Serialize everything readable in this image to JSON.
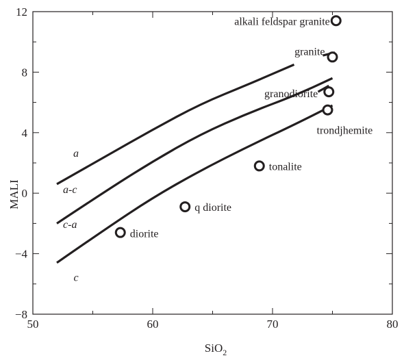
{
  "chart_data": {
    "type": "scatter",
    "xlabel": "SiO",
    "xlabel_subscript": "2",
    "ylabel": "MALI",
    "xlim": [
      50,
      80
    ],
    "ylim": [
      -8,
      12
    ],
    "xticks": [
      50,
      60,
      70,
      80
    ],
    "xtick_labels": [
      "50",
      "60",
      "70",
      "80"
    ],
    "yticks": [
      -8,
      -4,
      0,
      4,
      8,
      12
    ],
    "ytick_labels": [
      "−8",
      "−4",
      "0",
      "4",
      "8",
      "12"
    ],
    "grid": false,
    "points": [
      {
        "label": "alkali feldspar granite",
        "x": 75.3,
        "y": 11.4
      },
      {
        "label": "granite",
        "x": 75.0,
        "y": 9.0
      },
      {
        "label": "granodiorite",
        "x": 74.7,
        "y": 6.7
      },
      {
        "label": "trondjhemite",
        "x": 74.6,
        "y": 5.5
      },
      {
        "label": "tonalite",
        "x": 68.9,
        "y": 1.8
      },
      {
        "label": "q diorite",
        "x": 62.7,
        "y": -0.9
      },
      {
        "label": "diorite",
        "x": 57.3,
        "y": -2.6
      }
    ],
    "boundaries": [
      {
        "name": "upper",
        "points": [
          [
            52,
            0.6
          ],
          [
            56,
            2.4
          ],
          [
            60,
            4.2
          ],
          [
            64,
            5.9
          ],
          [
            68,
            7.2
          ],
          [
            71.8,
            8.5
          ]
        ]
      },
      {
        "name": "middle",
        "points": [
          [
            52,
            -2.0
          ],
          [
            56,
            0.1
          ],
          [
            60,
            2.1
          ],
          [
            64,
            3.9
          ],
          [
            68,
            5.3
          ],
          [
            72,
            6.5
          ],
          [
            75,
            7.6
          ]
        ]
      },
      {
        "name": "lower",
        "points": [
          [
            52,
            -4.6
          ],
          [
            56,
            -2.4
          ],
          [
            60,
            -0.3
          ],
          [
            64,
            1.5
          ],
          [
            68,
            3.1
          ],
          [
            72,
            4.6
          ],
          [
            75,
            5.8
          ]
        ]
      },
      {
        "name": "granite-segment",
        "points": [
          [
            74.2,
            9.1
          ],
          [
            75.2,
            9.3
          ]
        ]
      },
      {
        "name": "granodiorite-segment",
        "points": [
          [
            73.8,
            6.7
          ],
          [
            74.7,
            7.1
          ]
        ]
      }
    ],
    "field_labels": [
      {
        "text": "a",
        "x": 53.6,
        "y": 2.4
      },
      {
        "text": "a-c",
        "x": 53.1,
        "y": 0.0
      },
      {
        "text": "c-a",
        "x": 53.1,
        "y": -2.3
      },
      {
        "text": "c",
        "x": 53.6,
        "y": -5.8
      }
    ]
  }
}
